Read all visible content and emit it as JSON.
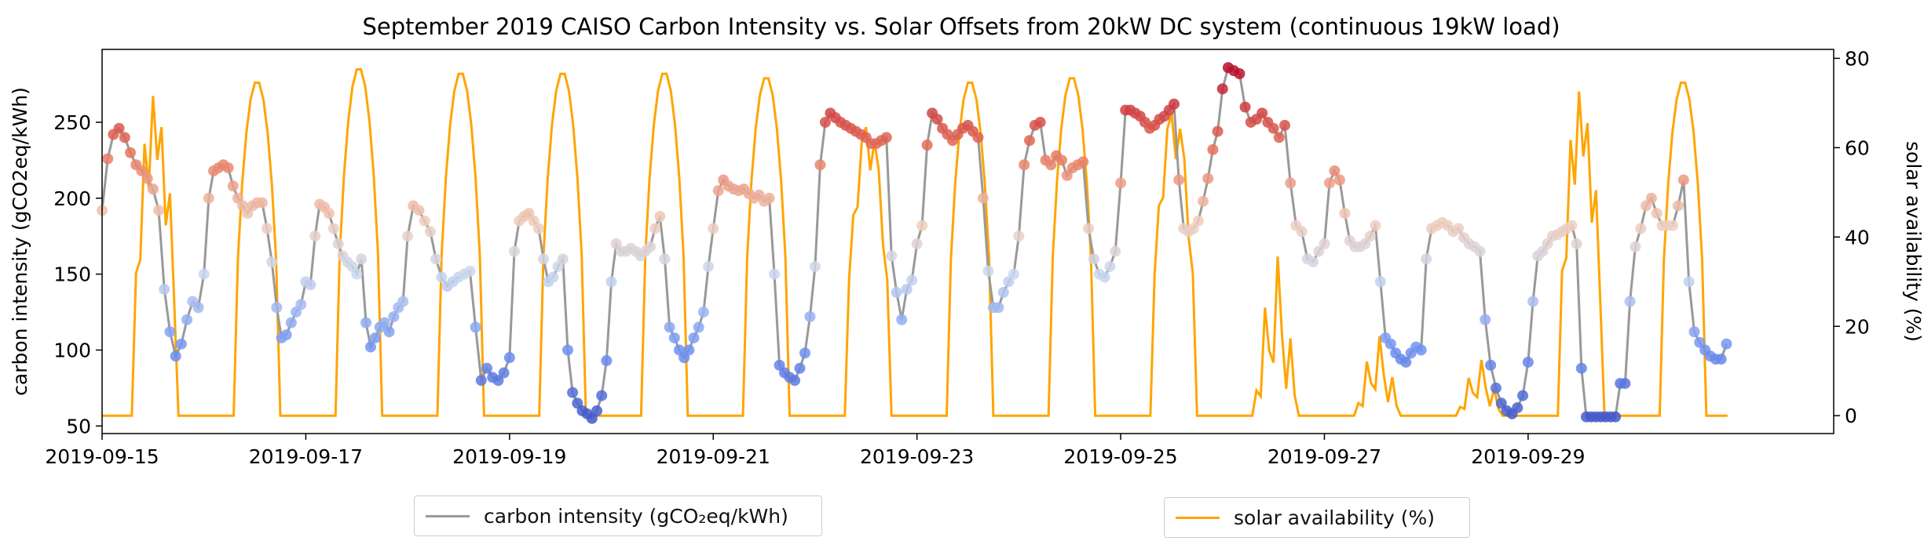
{
  "chart_data": {
    "type": "line",
    "title": "September 2019 CAISO Carbon Intensity vs. Solar Offsets from 20kW DC system (continuous 19kW load)",
    "xlabel": "",
    "ylabel_left": "carbon intensity (gCO2eq/kWh)",
    "ylabel_right": "solar availability (%)",
    "x_range": [
      "2019-09-15",
      "2019-10-02"
    ],
    "ylim_left": [
      45,
      298
    ],
    "ylim_right": [
      -4,
      82
    ],
    "x_ticks": [
      "2019-09-15",
      "2019-09-17",
      "2019-09-19",
      "2019-09-21",
      "2019-09-23",
      "2019-09-25",
      "2019-09-27",
      "2019-09-29"
    ],
    "yticks_left": [
      50,
      100,
      150,
      200,
      250
    ],
    "yticks_right": [
      0,
      20,
      40,
      60,
      80
    ],
    "grid": false,
    "legend": [
      {
        "label": "carbon intensity (gCO₂eq/kWh)",
        "placement": "bottom-left"
      },
      {
        "label": "solar availability (%)",
        "placement": "bottom-right"
      }
    ],
    "colors": {
      "carbon": "#999999",
      "solar": "#FFA500",
      "cmap_low": "#3b4cc0",
      "cmap_high": "#b40426"
    },
    "series": [
      {
        "name": "carbon intensity (gCO₂eq/kWh)",
        "axis": "left",
        "daily_profiles": [
          {
            "date": "2019-09-15",
            "hourly": [
              192,
              226,
              242,
              246,
              240,
              230,
              222,
              218,
              213,
              206,
              192,
              140,
              112,
              96,
              104,
              120,
              132,
              128
            ]
          },
          {
            "date": "2019-09-16",
            "hourly": [
              150,
              200,
              218,
              220,
              222,
              220,
              208,
              200,
              195,
              190,
              195,
              197,
              197,
              180,
              158,
              128,
              108,
              110,
              118,
              125,
              130
            ]
          },
          {
            "date": "2019-09-17",
            "hourly": [
              145,
              143,
              175,
              196,
              194,
              190,
              180,
              170,
              162,
              158,
              155,
              150,
              160,
              118,
              102,
              108,
              115,
              118,
              112,
              122,
              128,
              132
            ]
          },
          {
            "date": "2019-09-18",
            "hourly": [
              175,
              195,
              192,
              185,
              178,
              160,
              148,
              142,
              145,
              148,
              150,
              152,
              115,
              80,
              88,
              82,
              80,
              85
            ]
          },
          {
            "date": "2019-09-19",
            "hourly": [
              95,
              165,
              185,
              188,
              190,
              185,
              180,
              160,
              145,
              148,
              155,
              160,
              100,
              72,
              65,
              60,
              58,
              55,
              60,
              70,
              93
            ]
          },
          {
            "date": "2019-09-20",
            "hourly": [
              145,
              170,
              165,
              165,
              167,
              165,
              162,
              165,
              168,
              180,
              188,
              160,
              115,
              108,
              100,
              95,
              100,
              108,
              115,
              125,
              155
            ]
          },
          {
            "date": "2019-09-21",
            "hourly": [
              180,
              205,
              212,
              208,
              206,
              205,
              206,
              203,
              200,
              202,
              198,
              200,
              150,
              90,
              85,
              82,
              80,
              88,
              98,
              122
            ]
          },
          {
            "date": "2019-09-22",
            "hourly": [
              155,
              222,
              250,
              256,
              253,
              250,
              248,
              246,
              244,
              242,
              240,
              236,
              236,
              238,
              240,
              162,
              138,
              120,
              140,
              146
            ]
          },
          {
            "date": "2019-09-23",
            "hourly": [
              170,
              182,
              235,
              256,
              252,
              246,
              242,
              238,
              242,
              246,
              248,
              244,
              240,
              200,
              152,
              128,
              128,
              138,
              145,
              150
            ]
          },
          {
            "date": "2019-09-24",
            "hourly": [
              175,
              222,
              238,
              248,
              250,
              225,
              222,
              228,
              225,
              215,
              220,
              222,
              224,
              180,
              160,
              150,
              148,
              155,
              165
            ]
          },
          {
            "date": "2019-09-25",
            "hourly": [
              210,
              258,
              258,
              256,
              254,
              250,
              246,
              248,
              252,
              254,
              258,
              262,
              212,
              180,
              178,
              180,
              185,
              198,
              213,
              232,
              244
            ]
          },
          {
            "date": "2019-09-26",
            "hourly": [
              272,
              286,
              284,
              282,
              260,
              250,
              252,
              256,
              250,
              246,
              240,
              248,
              210,
              182,
              178,
              160,
              158,
              165
            ]
          },
          {
            "date": "2019-09-27",
            "hourly": [
              170,
              210,
              218,
              212,
              190,
              172,
              168,
              168,
              170,
              175,
              182,
              145,
              108,
              104,
              98,
              94,
              92,
              98,
              102,
              100
            ]
          },
          {
            "date": "2019-09-28",
            "hourly": [
              160,
              180,
              182,
              184,
              182,
              178,
              180,
              174,
              170,
              168,
              165,
              120,
              90,
              75,
              65,
              60,
              58,
              62,
              70
            ]
          },
          {
            "date": "2019-09-29",
            "hourly": [
              92,
              132,
              162,
              165,
              170,
              175,
              176,
              178,
              180,
              182,
              170,
              88,
              56,
              56,
              56,
              56,
              56,
              56,
              56,
              78,
              78
            ]
          },
          {
            "date": "2019-09-30",
            "hourly": [
              132,
              168,
              180,
              195,
              200,
              190,
              182,
              182,
              182,
              195,
              212,
              145,
              112,
              105,
              100,
              96,
              94,
              94,
              104
            ]
          }
        ]
      },
      {
        "name": "solar availability (%)",
        "axis": "right",
        "daily_peaks": [
          {
            "date": "2019-09-15",
            "peak": 72,
            "pattern": "cloudy"
          },
          {
            "date": "2019-09-16",
            "peak": 75,
            "pattern": "clear"
          },
          {
            "date": "2019-09-17",
            "peak": 78,
            "pattern": "clear"
          },
          {
            "date": "2019-09-18",
            "peak": 77,
            "pattern": "clear"
          },
          {
            "date": "2019-09-19",
            "peak": 77,
            "pattern": "clear"
          },
          {
            "date": "2019-09-20",
            "peak": 77,
            "pattern": "clear"
          },
          {
            "date": "2019-09-21",
            "peak": 76,
            "pattern": "clear"
          },
          {
            "date": "2019-09-22",
            "peak": 65,
            "pattern": "partly-cloudy"
          },
          {
            "date": "2019-09-23",
            "peak": 75,
            "pattern": "clear"
          },
          {
            "date": "2019-09-24",
            "peak": 76,
            "pattern": "clear"
          },
          {
            "date": "2019-09-25",
            "peak": 68,
            "pattern": "partly-cloudy"
          },
          {
            "date": "2019-09-26",
            "peak": 40,
            "pattern": "overcast"
          },
          {
            "date": "2019-09-27",
            "peak": 20,
            "pattern": "overcast"
          },
          {
            "date": "2019-09-28",
            "peak": 14,
            "pattern": "overcast"
          },
          {
            "date": "2019-09-29",
            "peak": 73,
            "pattern": "cloudy"
          },
          {
            "date": "2019-09-30",
            "peak": 75,
            "pattern": "clear"
          }
        ]
      }
    ]
  }
}
